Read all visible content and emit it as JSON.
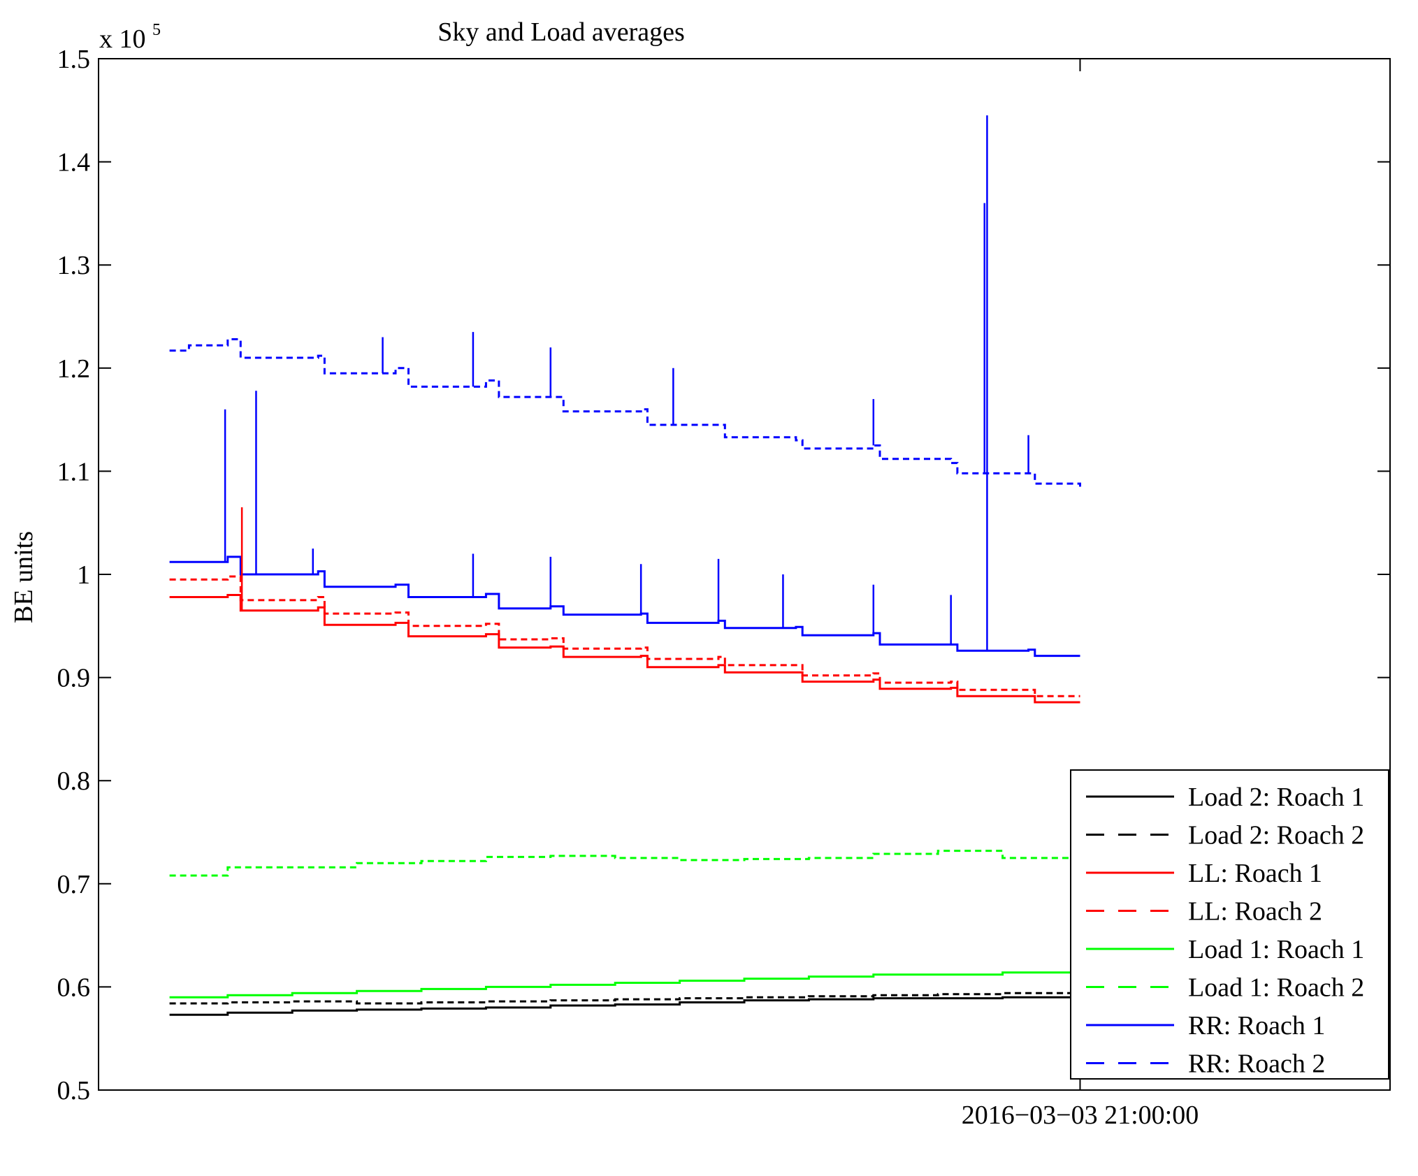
{
  "chart_data": {
    "type": "line",
    "title": "Sky and Load averages",
    "xlabel": "",
    "ylabel": "BE units",
    "y_exponent_base": "x 10",
    "y_exponent_power": "5",
    "ylim": [
      0.5,
      1.5
    ],
    "yticks": [
      0.5,
      0.6,
      0.7,
      0.8,
      0.9,
      1,
      1.1,
      1.2,
      1.3,
      1.4,
      1.5
    ],
    "ytick_labels": [
      "0.5",
      "0.6",
      "0.7",
      "0.8",
      "0.9",
      "1",
      "1.1",
      "1.2",
      "1.3",
      "1.4",
      "1.5"
    ],
    "xlim": [
      0,
      1
    ],
    "xticks": [
      0.76
    ],
    "xtick_labels": [
      "2016−03−03 21:00:00"
    ],
    "grid": false,
    "legend_position": "bottom-right",
    "series": [
      {
        "name": "Load 2: Roach 1",
        "color": "#000000",
        "style": "solid",
        "x": [
          0.055,
          0.1,
          0.15,
          0.2,
          0.25,
          0.3,
          0.35,
          0.4,
          0.45,
          0.5,
          0.55,
          0.6,
          0.65,
          0.7,
          0.76
        ],
        "y": [
          0.573,
          0.575,
          0.577,
          0.578,
          0.579,
          0.58,
          0.582,
          0.583,
          0.585,
          0.587,
          0.588,
          0.589,
          0.589,
          0.59,
          0.592
        ]
      },
      {
        "name": "Load 2: Roach 2",
        "color": "#000000",
        "style": "dashed",
        "x": [
          0.055,
          0.1,
          0.15,
          0.2,
          0.25,
          0.3,
          0.35,
          0.4,
          0.45,
          0.5,
          0.55,
          0.6,
          0.65,
          0.7,
          0.76
        ],
        "y": [
          0.584,
          0.585,
          0.586,
          0.584,
          0.585,
          0.586,
          0.587,
          0.588,
          0.589,
          0.59,
          0.591,
          0.592,
          0.593,
          0.594,
          0.596
        ]
      },
      {
        "name": "LL: Roach 1",
        "color": "#ff0000",
        "style": "solid",
        "x": [
          0.055,
          0.1,
          0.11,
          0.17,
          0.175,
          0.23,
          0.24,
          0.3,
          0.31,
          0.35,
          0.36,
          0.42,
          0.425,
          0.48,
          0.485,
          0.54,
          0.545,
          0.6,
          0.605,
          0.66,
          0.665,
          0.72,
          0.725,
          0.76
        ],
        "y": [
          0.978,
          0.98,
          0.965,
          0.968,
          0.951,
          0.953,
          0.94,
          0.942,
          0.929,
          0.93,
          0.92,
          0.921,
          0.91,
          0.912,
          0.905,
          0.905,
          0.896,
          0.898,
          0.889,
          0.89,
          0.882,
          0.882,
          0.876,
          0.876
        ]
      },
      {
        "name": "LL: Roach 2",
        "color": "#ff0000",
        "style": "dashed",
        "x": [
          0.055,
          0.1,
          0.11,
          0.17,
          0.175,
          0.23,
          0.24,
          0.3,
          0.31,
          0.35,
          0.36,
          0.42,
          0.425,
          0.48,
          0.485,
          0.54,
          0.545,
          0.6,
          0.605,
          0.66,
          0.665,
          0.72,
          0.725,
          0.76
        ],
        "y": [
          0.995,
          0.998,
          0.975,
          0.978,
          0.962,
          0.963,
          0.95,
          0.952,
          0.937,
          0.938,
          0.928,
          0.929,
          0.918,
          0.92,
          0.912,
          0.912,
          0.902,
          0.904,
          0.895,
          0.896,
          0.888,
          0.888,
          0.882,
          0.882
        ]
      },
      {
        "name": "Load 1: Roach 1",
        "color": "#00ff00",
        "style": "solid",
        "x": [
          0.055,
          0.1,
          0.15,
          0.2,
          0.25,
          0.3,
          0.35,
          0.4,
          0.45,
          0.5,
          0.55,
          0.6,
          0.65,
          0.7,
          0.76
        ],
        "y": [
          0.59,
          0.592,
          0.594,
          0.596,
          0.598,
          0.6,
          0.602,
          0.604,
          0.606,
          0.608,
          0.61,
          0.612,
          0.612,
          0.614,
          0.615
        ]
      },
      {
        "name": "Load 1: Roach 2",
        "color": "#00ff00",
        "style": "dashed",
        "x": [
          0.055,
          0.1,
          0.15,
          0.2,
          0.25,
          0.3,
          0.35,
          0.4,
          0.45,
          0.5,
          0.55,
          0.6,
          0.65,
          0.7,
          0.76
        ],
        "y": [
          0.708,
          0.716,
          0.716,
          0.72,
          0.722,
          0.726,
          0.727,
          0.725,
          0.723,
          0.724,
          0.725,
          0.729,
          0.732,
          0.725,
          0.723
        ]
      },
      {
        "name": "RR: Roach 1",
        "color": "#0000ff",
        "style": "solid",
        "x": [
          0.055,
          0.1,
          0.11,
          0.17,
          0.175,
          0.23,
          0.24,
          0.3,
          0.31,
          0.35,
          0.36,
          0.42,
          0.425,
          0.48,
          0.485,
          0.54,
          0.545,
          0.6,
          0.605,
          0.66,
          0.665,
          0.72,
          0.725,
          0.76
        ],
        "y": [
          1.012,
          1.017,
          1.0,
          1.003,
          0.988,
          0.99,
          0.978,
          0.981,
          0.967,
          0.969,
          0.961,
          0.962,
          0.953,
          0.955,
          0.948,
          0.949,
          0.941,
          0.943,
          0.932,
          0.932,
          0.926,
          0.927,
          0.921,
          0.921
        ]
      },
      {
        "name": "RR: Roach 2",
        "color": "#0000ff",
        "style": "dashed",
        "x": [
          0.055,
          0.07,
          0.1,
          0.11,
          0.17,
          0.175,
          0.23,
          0.24,
          0.3,
          0.31,
          0.35,
          0.36,
          0.42,
          0.425,
          0.48,
          0.485,
          0.54,
          0.545,
          0.6,
          0.605,
          0.66,
          0.665,
          0.72,
          0.725,
          0.76
        ],
        "y": [
          1.217,
          1.222,
          1.228,
          1.21,
          1.212,
          1.195,
          1.2,
          1.182,
          1.188,
          1.172,
          1.172,
          1.158,
          1.16,
          1.145,
          1.145,
          1.133,
          1.13,
          1.122,
          1.125,
          1.112,
          1.108,
          1.098,
          1.098,
          1.088,
          1.085
        ]
      }
    ],
    "spikes": [
      {
        "series": "RR: Roach 1",
        "x": 0.098,
        "top": 1.16
      },
      {
        "series": "RR: Roach 1",
        "x": 0.122,
        "top": 1.178
      },
      {
        "series": "RR: Roach 1",
        "x": 0.688,
        "top": 1.445
      },
      {
        "series": "RR: Roach 2",
        "x": 0.686,
        "top": 1.36
      },
      {
        "series": "LL: Roach 1",
        "x": 0.111,
        "top": 1.065
      },
      {
        "series": "RR: Roach 1",
        "x": 0.166,
        "top": 1.025
      },
      {
        "series": "RR: Roach 1",
        "x": 0.29,
        "top": 1.02
      },
      {
        "series": "RR: Roach 1",
        "x": 0.35,
        "top": 1.017
      },
      {
        "series": "RR: Roach 1",
        "x": 0.42,
        "top": 1.01
      },
      {
        "series": "RR: Roach 1",
        "x": 0.48,
        "top": 1.015
      },
      {
        "series": "RR: Roach 1",
        "x": 0.53,
        "top": 1.0
      },
      {
        "series": "RR: Roach 1",
        "x": 0.6,
        "top": 0.99
      },
      {
        "series": "RR: Roach 1",
        "x": 0.66,
        "top": 0.98
      },
      {
        "series": "RR: Roach 2",
        "x": 0.22,
        "top": 1.23
      },
      {
        "series": "RR: Roach 2",
        "x": 0.29,
        "top": 1.235
      },
      {
        "series": "RR: Roach 2",
        "x": 0.35,
        "top": 1.22
      },
      {
        "series": "RR: Roach 2",
        "x": 0.445,
        "top": 1.2
      },
      {
        "series": "RR: Roach 2",
        "x": 0.6,
        "top": 1.17
      },
      {
        "series": "RR: Roach 2",
        "x": 0.72,
        "top": 1.135
      }
    ],
    "legend": [
      "Load 2: Roach 1",
      "Load 2: Roach 2",
      "LL: Roach 1",
      "LL: Roach 2",
      "Load 1: Roach 1",
      "Load 1: Roach 2",
      "RR: Roach 1",
      "RR: Roach 2"
    ]
  }
}
